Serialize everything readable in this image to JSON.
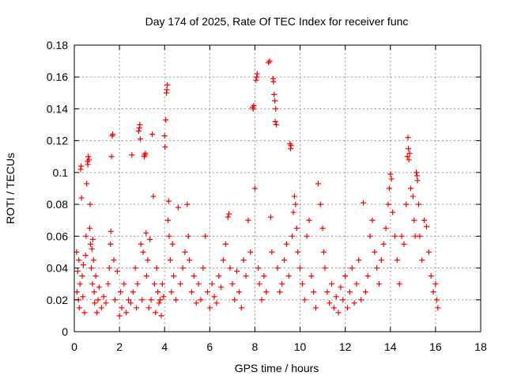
{
  "chart_data": {
    "type": "scatter",
    "title": "Day 174 of 2025, Rate Of TEC Index for receiver func",
    "xlabel": "GPS time / hours",
    "ylabel": "ROTI / TECUs",
    "xlim": [
      0,
      18
    ],
    "ylim": [
      0,
      0.18
    ],
    "xticks": [
      "0",
      "2",
      "4",
      "6",
      "8",
      "10",
      "12",
      "14",
      "16",
      "18"
    ],
    "yticks": [
      "0",
      "0.02",
      "0.04",
      "0.06",
      "0.08",
      "0.1",
      "0.12",
      "0.14",
      "0.16",
      "0.18"
    ],
    "grid": true,
    "marker": "plus",
    "color": "#ff0000",
    "series": [
      {
        "points": [
          [
            0.1,
            0.05
          ],
          [
            0.12,
            0.025
          ],
          [
            0.15,
            0.038
          ],
          [
            0.18,
            0.02
          ],
          [
            0.2,
            0.045
          ],
          [
            0.22,
            0.015
          ],
          [
            0.25,
            0.03
          ],
          [
            0.28,
            0.102
          ],
          [
            0.3,
            0.104
          ],
          [
            0.32,
            0.084
          ],
          [
            0.35,
            0.035
          ],
          [
            0.38,
            0.022
          ],
          [
            0.4,
            0.042
          ],
          [
            0.45,
            0.012
          ],
          [
            0.5,
            0.048
          ],
          [
            0.52,
            0.06
          ],
          [
            0.55,
            0.093
          ],
          [
            0.58,
            0.107
          ],
          [
            0.6,
            0.105
          ],
          [
            0.62,
            0.11
          ],
          [
            0.65,
            0.108
          ],
          [
            0.68,
            0.065
          ],
          [
            0.7,
            0.08
          ],
          [
            0.72,
            0.055
          ],
          [
            0.75,
            0.04
          ],
          [
            0.78,
            0.052
          ],
          [
            0.8,
            0.03
          ],
          [
            0.82,
            0.058
          ],
          [
            0.85,
            0.045
          ],
          [
            0.88,
            0.025
          ],
          [
            0.9,
            0.018
          ],
          [
            0.95,
            0.035
          ],
          [
            1.0,
            0.012
          ],
          [
            1.05,
            0.02
          ],
          [
            1.1,
            0.028
          ],
          [
            1.2,
            0.015
          ],
          [
            1.3,
            0.022
          ],
          [
            1.4,
            0.018
          ],
          [
            1.5,
            0.03
          ],
          [
            1.55,
            0.04
          ],
          [
            1.6,
            0.055
          ],
          [
            1.62,
            0.063
          ],
          [
            1.65,
            0.11
          ],
          [
            1.68,
            0.123
          ],
          [
            1.7,
            0.124
          ],
          [
            1.75,
            0.045
          ],
          [
            1.8,
            0.02
          ],
          [
            1.9,
            0.038
          ],
          [
            2.0,
            0.01
          ],
          [
            2.05,
            0.025
          ],
          [
            2.1,
            0.015
          ],
          [
            2.2,
            0.03
          ],
          [
            2.3,
            0.012
          ],
          [
            2.4,
            0.02
          ],
          [
            2.5,
            0.018
          ],
          [
            2.55,
            0.111
          ],
          [
            2.6,
            0.025
          ],
          [
            2.7,
            0.04
          ],
          [
            2.75,
            0.015
          ],
          [
            2.8,
            0.03
          ],
          [
            2.85,
            0.126
          ],
          [
            2.88,
            0.128
          ],
          [
            2.9,
            0.13
          ],
          [
            2.92,
            0.121
          ],
          [
            2.95,
            0.055
          ],
          [
            3.0,
            0.02
          ],
          [
            3.05,
            0.05
          ],
          [
            3.1,
            0.11
          ],
          [
            3.12,
            0.111
          ],
          [
            3.15,
            0.112
          ],
          [
            3.18,
            0.062
          ],
          [
            3.2,
            0.035
          ],
          [
            3.25,
            0.045
          ],
          [
            3.3,
            0.015
          ],
          [
            3.35,
            0.058
          ],
          [
            3.4,
            0.02
          ],
          [
            3.45,
            0.124
          ],
          [
            3.5,
            0.085
          ],
          [
            3.55,
            0.03
          ],
          [
            3.6,
            0.012
          ],
          [
            3.65,
            0.04
          ],
          [
            3.7,
            0.025
          ],
          [
            3.75,
            0.018
          ],
          [
            3.8,
            0.02
          ],
          [
            3.85,
            0.01
          ],
          [
            3.9,
            0.03
          ],
          [
            3.95,
            0.022
          ],
          [
            4.0,
            0.123
          ],
          [
            4.02,
            0.116
          ],
          [
            4.05,
            0.133
          ],
          [
            4.08,
            0.15
          ],
          [
            4.1,
            0.152
          ],
          [
            4.12,
            0.155
          ],
          [
            4.15,
            0.07
          ],
          [
            4.18,
            0.082
          ],
          [
            4.2,
            0.06
          ],
          [
            4.25,
            0.045
          ],
          [
            4.3,
            0.025
          ],
          [
            4.35,
            0.055
          ],
          [
            4.4,
            0.035
          ],
          [
            4.5,
            0.02
          ],
          [
            4.6,
            0.078
          ],
          [
            4.7,
            0.03
          ],
          [
            4.8,
            0.04
          ],
          [
            4.9,
            0.05
          ],
          [
            5.0,
            0.08
          ],
          [
            5.05,
            0.06
          ],
          [
            5.1,
            0.045
          ],
          [
            5.2,
            0.025
          ],
          [
            5.3,
            0.035
          ],
          [
            5.4,
            0.018
          ],
          [
            5.5,
            0.03
          ],
          [
            5.6,
            0.02
          ],
          [
            5.7,
            0.04
          ],
          [
            5.8,
            0.06
          ],
          [
            5.9,
            0.025
          ],
          [
            6.0,
            0.015
          ],
          [
            6.1,
            0.03
          ],
          [
            6.2,
            0.022
          ],
          [
            6.3,
            0.018
          ],
          [
            6.4,
            0.035
          ],
          [
            6.5,
            0.028
          ],
          [
            6.6,
            0.045
          ],
          [
            6.7,
            0.055
          ],
          [
            6.8,
            0.072
          ],
          [
            6.85,
            0.074
          ],
          [
            6.9,
            0.04
          ],
          [
            7.0,
            0.03
          ],
          [
            7.1,
            0.02
          ],
          [
            7.2,
            0.038
          ],
          [
            7.3,
            0.025
          ],
          [
            7.4,
            0.015
          ],
          [
            7.5,
            0.045
          ],
          [
            7.6,
            0.035
          ],
          [
            7.7,
            0.07
          ],
          [
            7.8,
            0.05
          ],
          [
            7.9,
            0.141
          ],
          [
            7.92,
            0.14
          ],
          [
            7.95,
            0.142
          ],
          [
            8.0,
            0.09
          ],
          [
            8.05,
            0.158
          ],
          [
            8.08,
            0.16
          ],
          [
            8.1,
            0.162
          ],
          [
            8.15,
            0.04
          ],
          [
            8.2,
            0.03
          ],
          [
            8.3,
            0.02
          ],
          [
            8.4,
            0.035
          ],
          [
            8.5,
            0.025
          ],
          [
            8.6,
            0.169
          ],
          [
            8.65,
            0.17
          ],
          [
            8.7,
            0.072
          ],
          [
            8.75,
            0.05
          ],
          [
            8.8,
            0.159
          ],
          [
            8.82,
            0.157
          ],
          [
            8.85,
            0.149
          ],
          [
            8.88,
            0.145
          ],
          [
            8.9,
            0.132
          ],
          [
            8.92,
            0.14
          ],
          [
            8.95,
            0.13
          ],
          [
            9.0,
            0.04
          ],
          [
            9.1,
            0.025
          ],
          [
            9.2,
            0.03
          ],
          [
            9.3,
            0.045
          ],
          [
            9.4,
            0.055
          ],
          [
            9.5,
            0.035
          ],
          [
            9.55,
            0.118
          ],
          [
            9.58,
            0.115
          ],
          [
            9.6,
            0.117
          ],
          [
            9.65,
            0.06
          ],
          [
            9.7,
            0.075
          ],
          [
            9.75,
            0.085
          ],
          [
            9.8,
            0.08
          ],
          [
            9.85,
            0.065
          ],
          [
            9.9,
            0.05
          ],
          [
            10.0,
            0.04
          ],
          [
            10.1,
            0.03
          ],
          [
            10.2,
            0.02
          ],
          [
            10.3,
            0.06
          ],
          [
            10.4,
            0.07
          ],
          [
            10.5,
            0.035
          ],
          [
            10.6,
            0.025
          ],
          [
            10.7,
            0.015
          ],
          [
            10.8,
            0.093
          ],
          [
            10.9,
            0.08
          ],
          [
            11.0,
            0.065
          ],
          [
            11.05,
            0.05
          ],
          [
            11.1,
            0.04
          ],
          [
            11.2,
            0.025
          ],
          [
            11.3,
            0.018
          ],
          [
            11.4,
            0.03
          ],
          [
            11.5,
            0.015
          ],
          [
            11.6,
            0.022
          ],
          [
            11.7,
            0.012
          ],
          [
            11.8,
            0.028
          ],
          [
            11.9,
            0.02
          ],
          [
            12.0,
            0.035
          ],
          [
            12.1,
            0.015
          ],
          [
            12.2,
            0.025
          ],
          [
            12.3,
            0.04
          ],
          [
            12.4,
            0.018
          ],
          [
            12.5,
            0.03
          ],
          [
            12.6,
            0.045
          ],
          [
            12.7,
            0.02
          ],
          [
            12.8,
            0.081
          ],
          [
            12.9,
            0.025
          ],
          [
            13.0,
            0.035
          ],
          [
            13.1,
            0.06
          ],
          [
            13.2,
            0.07
          ],
          [
            13.3,
            0.05
          ],
          [
            13.4,
            0.04
          ],
          [
            13.5,
            0.03
          ],
          [
            13.6,
            0.045
          ],
          [
            13.7,
            0.055
          ],
          [
            13.8,
            0.065
          ],
          [
            13.9,
            0.08
          ],
          [
            13.95,
            0.09
          ],
          [
            14.0,
            0.099
          ],
          [
            14.05,
            0.096
          ],
          [
            14.1,
            0.075
          ],
          [
            14.2,
            0.06
          ],
          [
            14.3,
            0.045
          ],
          [
            14.4,
            0.03
          ],
          [
            14.5,
            0.06
          ],
          [
            14.6,
            0.055
          ],
          [
            14.7,
            0.08
          ],
          [
            14.75,
            0.11
          ],
          [
            14.78,
            0.122
          ],
          [
            14.8,
            0.115
          ],
          [
            14.82,
            0.108
          ],
          [
            14.85,
            0.112
          ],
          [
            14.9,
            0.09
          ],
          [
            15.0,
            0.085
          ],
          [
            15.05,
            0.07
          ],
          [
            15.1,
            0.06
          ],
          [
            15.15,
            0.1
          ],
          [
            15.18,
            0.098
          ],
          [
            15.2,
            0.095
          ],
          [
            15.25,
            0.08
          ],
          [
            15.3,
            0.06
          ],
          [
            15.4,
            0.045
          ],
          [
            15.5,
            0.07
          ],
          [
            15.6,
            0.066
          ],
          [
            15.7,
            0.05
          ],
          [
            15.8,
            0.035
          ],
          [
            15.9,
            0.025
          ],
          [
            16.0,
            0.03
          ],
          [
            16.05,
            0.02
          ],
          [
            16.1,
            0.015
          ]
        ]
      }
    ]
  }
}
